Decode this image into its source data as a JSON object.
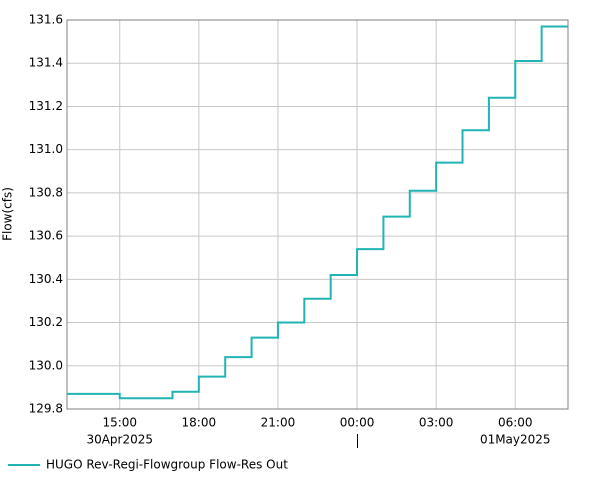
{
  "chart_data": {
    "type": "step-line",
    "ylabel": "Flow(cfs)",
    "x": [
      "2025-04-30T13:00",
      "2025-04-30T15:00",
      "2025-04-30T16:00",
      "2025-04-30T17:00",
      "2025-04-30T18:00",
      "2025-04-30T19:00",
      "2025-04-30T20:00",
      "2025-04-30T21:00",
      "2025-04-30T22:00",
      "2025-04-30T23:00",
      "2025-05-01T00:00",
      "2025-05-01T01:00",
      "2025-05-01T02:00",
      "2025-05-01T03:00",
      "2025-05-01T04:00",
      "2025-05-01T05:00",
      "2025-05-01T06:00",
      "2025-05-01T07:00"
    ],
    "series": [
      {
        "name": "HUGO Rev-Regi-Flowgroup Flow-Res Out",
        "color": "#20b4b4",
        "values": [
          129.87,
          129.85,
          129.85,
          129.88,
          129.95,
          130.04,
          130.13,
          130.2,
          130.31,
          130.42,
          130.54,
          130.69,
          130.81,
          130.94,
          131.09,
          131.24,
          131.41,
          131.57
        ]
      }
    ],
    "xlim": [
      "2025-04-30T13:00",
      "2025-05-01T08:00"
    ],
    "xticks": [
      {
        "value": "2025-04-30T15:00",
        "label": "15:00"
      },
      {
        "value": "2025-04-30T18:00",
        "label": "18:00"
      },
      {
        "value": "2025-04-30T21:00",
        "label": "21:00"
      },
      {
        "value": "2025-05-01T00:00",
        "label": "00:00"
      },
      {
        "value": "2025-05-01T03:00",
        "label": "03:00"
      },
      {
        "value": "2025-05-01T06:00",
        "label": "06:00"
      }
    ],
    "date_labels": [
      {
        "value": "2025-04-30T15:00",
        "label": "30Apr2025"
      },
      {
        "value": "2025-05-01T06:00",
        "label": "01May2025"
      }
    ],
    "ylim": [
      129.8,
      131.6
    ],
    "yticks": [
      129.8,
      {
        "value": 130,
        "label": "130.0"
      },
      130.2,
      130.4,
      130.6,
      130.8,
      {
        "value": 131,
        "label": "131.0"
      },
      131.2,
      131.4,
      131.6
    ],
    "grid": true
  }
}
